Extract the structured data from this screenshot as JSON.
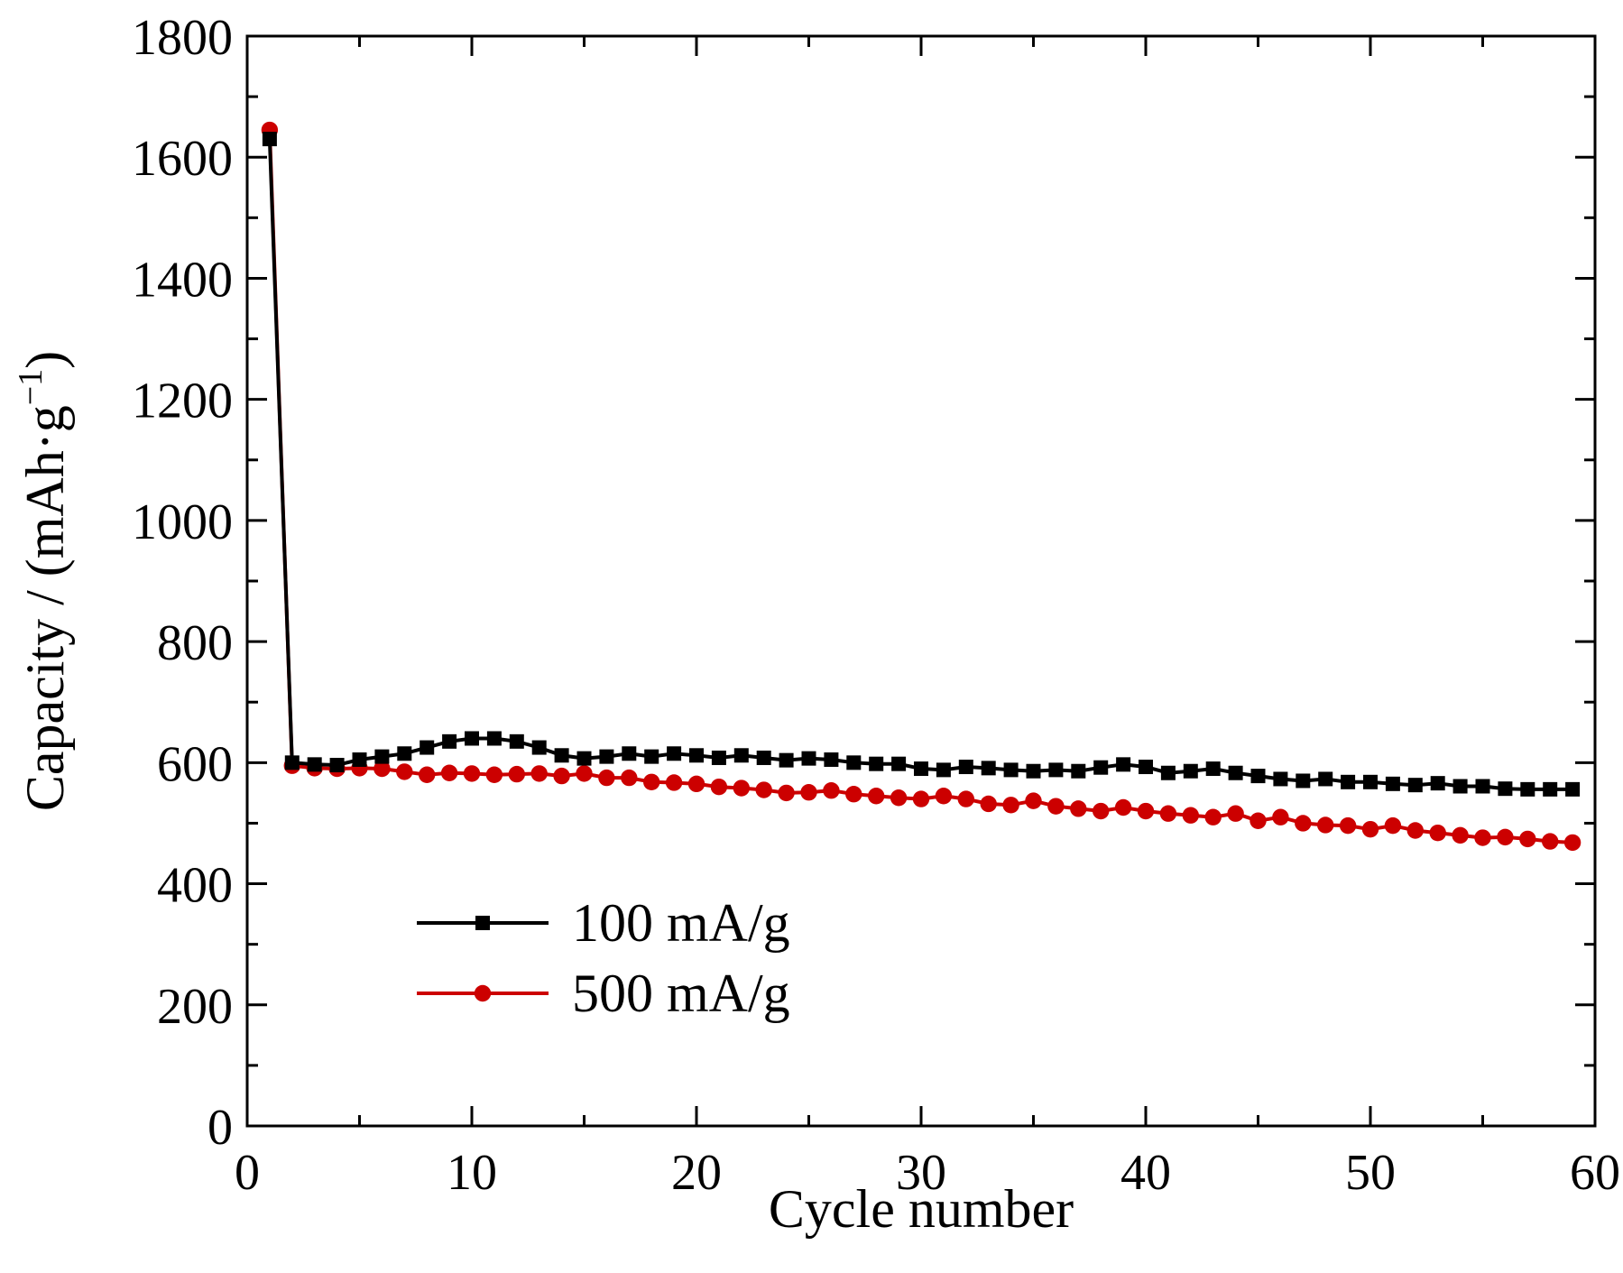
{
  "chart_data": {
    "type": "line",
    "title": "",
    "xlabel": "Cycle number",
    "ylabel_main": "Capacity / (mAh·g",
    "ylabel_sup": "−1",
    "ylabel_close": ")",
    "xlim": [
      0,
      60
    ],
    "ylim": [
      0,
      1800
    ],
    "x_ticks": [
      0,
      10,
      20,
      30,
      40,
      50,
      60
    ],
    "x_tick_labels": [
      "0",
      "10",
      "20",
      "30",
      "40",
      "50",
      "60"
    ],
    "y_ticks": [
      0,
      200,
      400,
      600,
      800,
      1000,
      1200,
      1400,
      1600,
      1800
    ],
    "y_tick_labels": [
      "0",
      "200",
      "400",
      "600",
      "800",
      "1000",
      "1200",
      "1400",
      "1600",
      "1800"
    ],
    "grid": false,
    "legend_position": "lower-left",
    "x": [
      1,
      2,
      3,
      4,
      5,
      6,
      7,
      8,
      9,
      10,
      11,
      12,
      13,
      14,
      15,
      16,
      17,
      18,
      19,
      20,
      21,
      22,
      23,
      24,
      25,
      26,
      27,
      28,
      29,
      30,
      31,
      32,
      33,
      34,
      35,
      36,
      37,
      38,
      39,
      40,
      41,
      42,
      43,
      44,
      45,
      46,
      47,
      48,
      49,
      50,
      51,
      52,
      53,
      54,
      55,
      56,
      57,
      58,
      59
    ],
    "series": [
      {
        "name": "100 mA/g",
        "color": "#000000",
        "marker": "square",
        "values": [
          1630,
          600,
          597,
          596,
          605,
          610,
          615,
          625,
          635,
          640,
          640,
          635,
          625,
          612,
          607,
          610,
          615,
          610,
          615,
          612,
          608,
          612,
          608,
          604,
          607,
          605,
          600,
          598,
          598,
          590,
          588,
          593,
          591,
          588,
          586,
          588,
          586,
          592,
          597,
          593,
          583,
          586,
          590,
          583,
          578,
          573,
          570,
          573,
          568,
          568,
          565,
          563,
          566,
          561,
          561,
          557,
          556,
          556,
          556
        ]
      },
      {
        "name": "500 mA/g",
        "color": "#cc0000",
        "marker": "circle",
        "values": [
          1645,
          595,
          591,
          590,
          591,
          590,
          585,
          580,
          583,
          582,
          580,
          581,
          582,
          578,
          582,
          575,
          575,
          568,
          567,
          565,
          560,
          558,
          555,
          550,
          551,
          554,
          548,
          545,
          542,
          540,
          545,
          540,
          532,
          530,
          537,
          528,
          524,
          520,
          526,
          520,
          516,
          513,
          510,
          516,
          504,
          510,
          500,
          497,
          496,
          490,
          496,
          488,
          484,
          480,
          476,
          477,
          474,
          470,
          468
        ]
      }
    ]
  }
}
